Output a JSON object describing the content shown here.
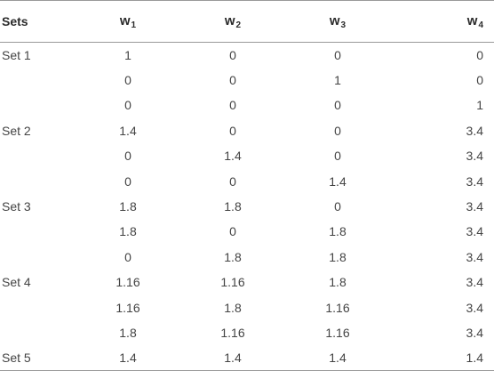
{
  "table": {
    "header": {
      "sets": "Sets",
      "w": [
        {
          "letter": "w",
          "sub": "1"
        },
        {
          "letter": "w",
          "sub": "2"
        },
        {
          "letter": "w",
          "sub": "3"
        },
        {
          "letter": "w",
          "sub": "4"
        }
      ]
    },
    "rows": [
      {
        "set": "Set 1",
        "v": [
          "1",
          "0",
          "0",
          "0"
        ]
      },
      {
        "set": "",
        "v": [
          "0",
          "0",
          "1",
          "0"
        ]
      },
      {
        "set": "",
        "v": [
          "0",
          "0",
          "0",
          "1"
        ]
      },
      {
        "set": "Set 2",
        "v": [
          "1.4",
          "0",
          "0",
          "3.4"
        ]
      },
      {
        "set": "",
        "v": [
          "0",
          "1.4",
          "0",
          "3.4"
        ]
      },
      {
        "set": "",
        "v": [
          "0",
          "0",
          "1.4",
          "3.4"
        ]
      },
      {
        "set": "Set 3",
        "v": [
          "1.8",
          "1.8",
          "0",
          "3.4"
        ]
      },
      {
        "set": "",
        "v": [
          "1.8",
          "0",
          "1.8",
          "3.4"
        ]
      },
      {
        "set": "",
        "v": [
          "0",
          "1.8",
          "1.8",
          "3.4"
        ]
      },
      {
        "set": "Set 4",
        "v": [
          "1.16",
          "1.16",
          "1.8",
          "3.4"
        ]
      },
      {
        "set": "",
        "v": [
          "1.16",
          "1.8",
          "1.16",
          "3.4"
        ]
      },
      {
        "set": "",
        "v": [
          "1.8",
          "1.16",
          "1.16",
          "3.4"
        ]
      },
      {
        "set": "Set 5",
        "v": [
          "1.4",
          "1.4",
          "1.4",
          "1.4"
        ]
      }
    ]
  }
}
